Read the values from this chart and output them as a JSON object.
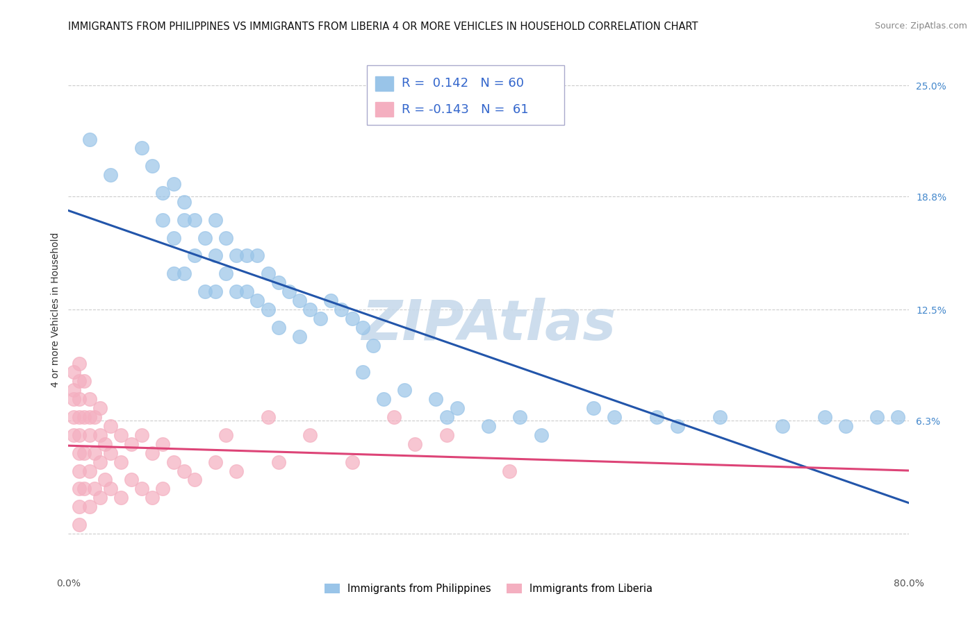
{
  "title": "IMMIGRANTS FROM PHILIPPINES VS IMMIGRANTS FROM LIBERIA 4 OR MORE VEHICLES IN HOUSEHOLD CORRELATION CHART",
  "source": "Source: ZipAtlas.com",
  "ylabel": "4 or more Vehicles in Household",
  "xlabel": "",
  "xlim": [
    0.0,
    0.8
  ],
  "ylim": [
    -0.02,
    0.27
  ],
  "philippines_color": "#99c4e8",
  "liberia_color": "#f4afc0",
  "philippines_line_color": "#2255aa",
  "liberia_line_color": "#dd4477",
  "background_color": "#ffffff",
  "grid_color": "#cccccc",
  "watermark": "ZIPAtlas",
  "watermark_color": "#c5d8ea",
  "title_fontsize": 10.5,
  "axis_label_fontsize": 10,
  "legend_fontsize": 13,
  "tick_fontsize": 10,
  "y_ticks_right": [
    0.25,
    0.188,
    0.125,
    0.063,
    0.0
  ],
  "y_tick_labels_right": [
    "25.0%",
    "18.8%",
    "12.5%",
    "6.3%",
    ""
  ],
  "philippines_x": [
    0.02,
    0.04,
    0.07,
    0.08,
    0.09,
    0.09,
    0.1,
    0.1,
    0.1,
    0.11,
    0.11,
    0.11,
    0.12,
    0.12,
    0.13,
    0.13,
    0.14,
    0.14,
    0.14,
    0.15,
    0.15,
    0.16,
    0.16,
    0.17,
    0.17,
    0.18,
    0.18,
    0.19,
    0.19,
    0.2,
    0.2,
    0.21,
    0.22,
    0.22,
    0.23,
    0.24,
    0.25,
    0.26,
    0.27,
    0.28,
    0.28,
    0.29,
    0.3,
    0.32,
    0.35,
    0.36,
    0.37,
    0.4,
    0.43,
    0.45,
    0.5,
    0.52,
    0.56,
    0.58,
    0.62,
    0.68,
    0.72,
    0.74,
    0.77,
    0.79
  ],
  "philippines_y": [
    0.22,
    0.2,
    0.215,
    0.205,
    0.19,
    0.175,
    0.195,
    0.165,
    0.145,
    0.185,
    0.175,
    0.145,
    0.175,
    0.155,
    0.165,
    0.135,
    0.175,
    0.155,
    0.135,
    0.165,
    0.145,
    0.155,
    0.135,
    0.155,
    0.135,
    0.155,
    0.13,
    0.145,
    0.125,
    0.14,
    0.115,
    0.135,
    0.13,
    0.11,
    0.125,
    0.12,
    0.13,
    0.125,
    0.12,
    0.115,
    0.09,
    0.105,
    0.075,
    0.08,
    0.075,
    0.065,
    0.07,
    0.06,
    0.065,
    0.055,
    0.07,
    0.065,
    0.065,
    0.06,
    0.065,
    0.06,
    0.065,
    0.06,
    0.065,
    0.065
  ],
  "liberia_x": [
    0.005,
    0.005,
    0.005,
    0.005,
    0.005,
    0.01,
    0.01,
    0.01,
    0.01,
    0.01,
    0.01,
    0.01,
    0.01,
    0.01,
    0.01,
    0.015,
    0.015,
    0.015,
    0.015,
    0.02,
    0.02,
    0.02,
    0.02,
    0.02,
    0.025,
    0.025,
    0.025,
    0.03,
    0.03,
    0.03,
    0.03,
    0.035,
    0.035,
    0.04,
    0.04,
    0.04,
    0.05,
    0.05,
    0.05,
    0.06,
    0.06,
    0.07,
    0.07,
    0.08,
    0.08,
    0.09,
    0.09,
    0.1,
    0.11,
    0.12,
    0.14,
    0.15,
    0.16,
    0.19,
    0.2,
    0.23,
    0.27,
    0.31,
    0.33,
    0.36,
    0.42
  ],
  "liberia_y": [
    0.09,
    0.08,
    0.075,
    0.065,
    0.055,
    0.095,
    0.085,
    0.075,
    0.065,
    0.055,
    0.045,
    0.035,
    0.025,
    0.015,
    0.005,
    0.085,
    0.065,
    0.045,
    0.025,
    0.075,
    0.065,
    0.055,
    0.035,
    0.015,
    0.065,
    0.045,
    0.025,
    0.07,
    0.055,
    0.04,
    0.02,
    0.05,
    0.03,
    0.06,
    0.045,
    0.025,
    0.055,
    0.04,
    0.02,
    0.05,
    0.03,
    0.055,
    0.025,
    0.045,
    0.02,
    0.05,
    0.025,
    0.04,
    0.035,
    0.03,
    0.04,
    0.055,
    0.035,
    0.065,
    0.04,
    0.055,
    0.04,
    0.065,
    0.05,
    0.055,
    0.035
  ]
}
